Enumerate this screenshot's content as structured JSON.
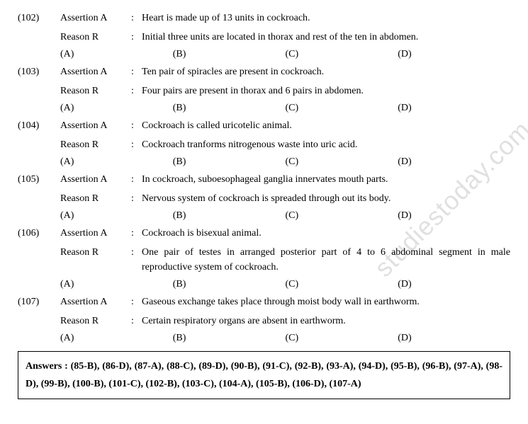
{
  "questions": [
    {
      "num": "(102)",
      "assertion_label": "Assertion A",
      "assertion_text": "Heart is made up of 13 units in cockroach.",
      "reason_label": "Reason R",
      "reason_text": "Initial three units are located in thorax and rest of the ten in abdomen.",
      "options": [
        "(A)",
        "(B)",
        "(C)",
        "(D)"
      ]
    },
    {
      "num": "(103)",
      "assertion_label": "Assertion A",
      "assertion_text": "Ten pair of spiracles are present in cockroach.",
      "reason_label": "Reason R",
      "reason_text": "Four pairs are present in thorax and 6 pairs in abdomen.",
      "options": [
        "(A)",
        "(B)",
        "(C)",
        "(D)"
      ]
    },
    {
      "num": "(104)",
      "assertion_label": "Assertion A",
      "assertion_text": "Cockroach is called uricotelic animal.",
      "reason_label": "Reason R",
      "reason_text": "Cockroach tranforms nitrogenous waste into uric acid.",
      "options": [
        "(A)",
        "(B)",
        "(C)",
        "(D)"
      ]
    },
    {
      "num": "(105)",
      "assertion_label": "Assertion A",
      "assertion_text": "In cockroach, suboesophageal ganglia innervates mouth parts.",
      "reason_label": "Reason R",
      "reason_text": "Nervous system of cockroach is spreaded through out its body.",
      "options": [
        "(A)",
        "(B)",
        "(C)",
        "(D)"
      ]
    },
    {
      "num": "(106)",
      "assertion_label": "Assertion A",
      "assertion_text": "Cockroach is bisexual animal.",
      "reason_label": "Reason R",
      "reason_text": "One pair of testes in arranged posterior part of 4 to 6 abdominal segment in male reproductive system of cockroach.",
      "options": [
        "(A)",
        "(B)",
        "(C)",
        "(D)"
      ]
    },
    {
      "num": "(107)",
      "assertion_label": "Assertion A",
      "assertion_text": "Gaseous exchange takes place through moist body wall in earthworm.",
      "reason_label": "Reason R",
      "reason_text": "Certain respiratory organs are absent in earthworm.",
      "options": [
        "(A)",
        "(B)",
        "(C)",
        "(D)"
      ]
    }
  ],
  "answers_label": "Answers : ",
  "answers_text": "(85-B), (86-D), (87-A), (88-C), (89-D), (90-B), (91-C), (92-B), (93-A), (94-D), (95-B), (96-B), (97-A), (98-D), (99-B), (100-B), (101-C), (102-B), (103-C), (104-A), (105-B), (106-D), (107-A)",
  "watermark": "studiestoday.com",
  "colon": ":"
}
